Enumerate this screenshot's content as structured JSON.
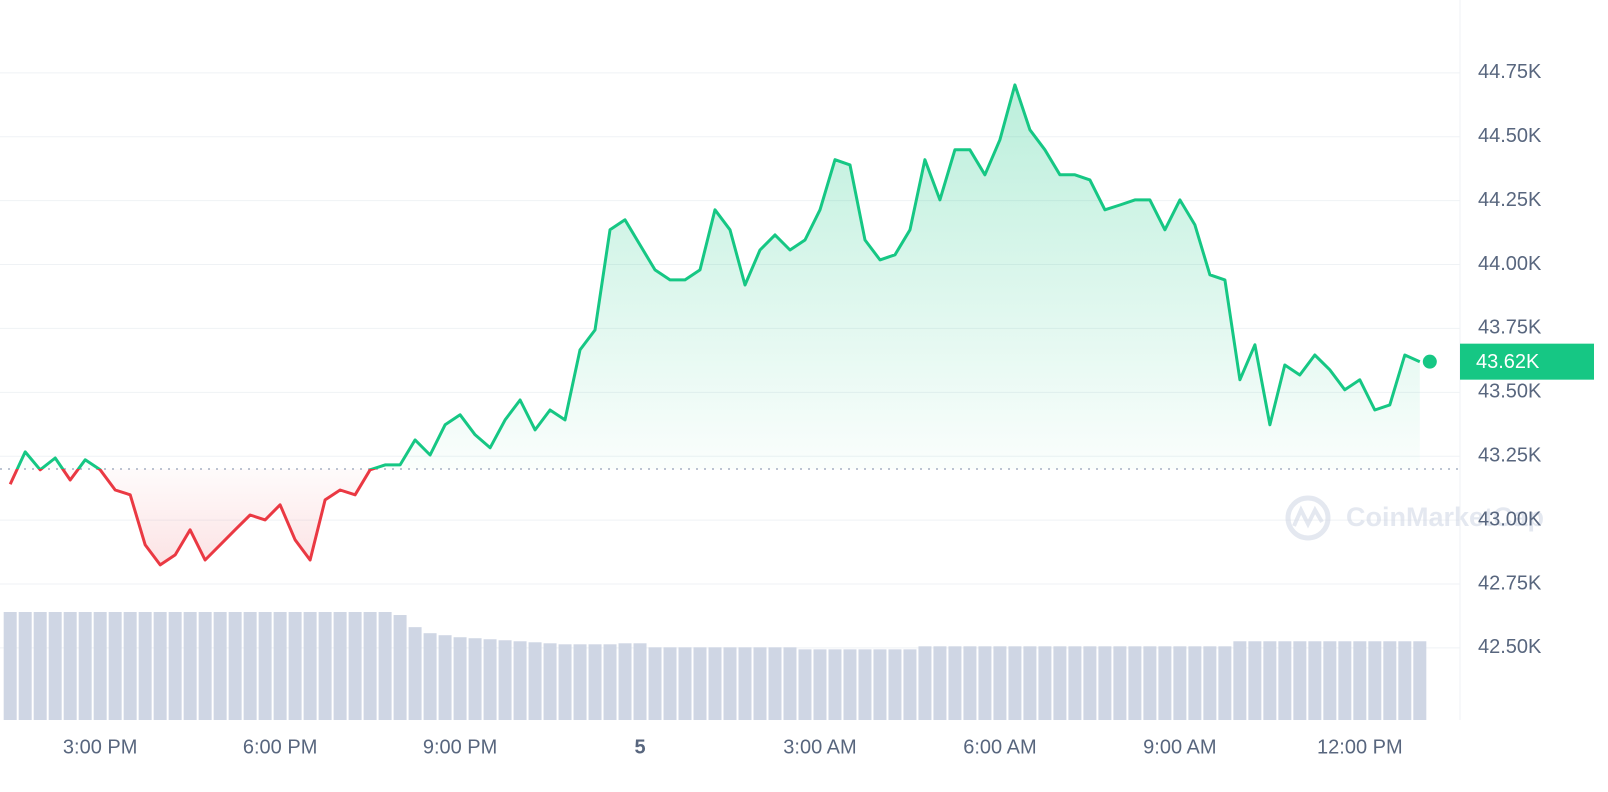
{
  "chart_data": {
    "type": "line",
    "x": [
      13.5,
      13.75,
      14,
      14.25,
      14.5,
      14.75,
      15,
      15.25,
      15.5,
      15.75,
      16,
      16.25,
      16.5,
      16.75,
      17,
      17.25,
      17.5,
      17.75,
      18,
      18.25,
      18.5,
      18.75,
      19,
      19.25,
      19.5,
      19.75,
      20,
      20.25,
      20.5,
      20.75,
      21,
      21.25,
      21.5,
      21.75,
      22,
      22.25,
      22.5,
      22.75,
      23,
      23.25,
      23.5,
      23.75,
      24,
      24.25,
      24.5,
      24.75,
      25,
      25.25,
      25.5,
      25.75,
      26,
      26.25,
      26.5,
      26.75,
      27,
      27.25,
      27.5,
      27.75,
      28,
      28.25,
      28.5,
      28.75,
      29,
      29.25,
      29.5,
      29.75,
      30,
      30.25,
      30.5,
      30.75,
      31,
      31.25,
      31.5,
      31.75,
      32,
      32.25,
      32.5,
      32.75,
      33,
      33.25,
      33.5,
      33.75,
      34,
      34.25,
      34.5,
      34.75,
      35,
      35.25,
      35.5,
      35.75,
      36,
      36.25,
      36.5,
      36.75,
      37
    ],
    "series": [
      {
        "name": "Price",
        "color": "#16c784",
        "color_below": "#ea3943",
        "values": [
          43140,
          43267,
          43197,
          43243,
          43157,
          43236,
          43197,
          43118,
          43099,
          42903,
          42825,
          42864,
          42962,
          42844,
          42903,
          42962,
          43020,
          43001,
          43060,
          42923,
          42844,
          43079,
          43118,
          43099,
          43197,
          43216,
          43216,
          43314,
          43255,
          43373,
          43412,
          43334,
          43283,
          43392,
          43470,
          43353,
          43431,
          43392,
          43666,
          43744,
          44136,
          44175,
          44077,
          43979,
          43940,
          43940,
          43979,
          44214,
          44136,
          43920,
          44057,
          44116,
          44057,
          44096,
          44214,
          44410,
          44390,
          44096,
          44018,
          44038,
          44136,
          44410,
          44253,
          44449,
          44449,
          44351,
          44488,
          44703,
          44527,
          44449,
          44351,
          44351,
          44331,
          44214,
          44233,
          44253,
          44253,
          44136,
          44253,
          44155,
          43960,
          43940,
          43549,
          43686,
          43373,
          43607,
          43568,
          43646,
          43588,
          43510,
          43549,
          43431,
          43451,
          43646,
          43620
        ]
      }
    ],
    "volume": {
      "color": "#cfd6e4",
      "values": [
        107,
        107,
        107,
        107,
        107,
        107,
        107,
        107,
        107,
        107,
        107,
        107,
        107,
        107,
        107,
        107,
        107,
        107,
        107,
        107,
        107,
        107,
        107,
        107,
        107,
        107,
        104,
        92,
        86,
        84,
        82,
        81,
        80,
        79,
        78,
        77,
        76,
        75,
        75,
        75,
        75,
        76,
        76,
        72,
        72,
        72,
        72,
        72,
        72,
        72,
        72,
        72,
        72,
        70,
        70,
        70,
        70,
        70,
        70,
        70,
        70,
        73,
        73,
        73,
        73,
        73,
        73,
        73,
        73,
        73,
        73,
        73,
        73,
        73,
        73,
        73,
        73,
        73,
        73,
        73,
        73,
        73,
        78,
        78,
        78,
        78,
        78,
        78,
        78,
        78,
        78,
        78,
        78,
        78,
        78
      ]
    },
    "baseline": 43200,
    "current_price": 43620,
    "current_price_label": "43.62K",
    "xlim": [
      13.33,
      37.67
    ],
    "ylim": [
      42218,
      45035
    ],
    "yticks": [
      {
        "value": 42500,
        "label": "42.50K"
      },
      {
        "value": 42750,
        "label": "42.75K"
      },
      {
        "value": 43000,
        "label": "43.00K"
      },
      {
        "value": 43250,
        "label": "43.25K"
      },
      {
        "value": 43500,
        "label": "43.50K"
      },
      {
        "value": 43750,
        "label": "43.75K"
      },
      {
        "value": 44000,
        "label": "44.00K"
      },
      {
        "value": 44250,
        "label": "44.25K"
      },
      {
        "value": 44500,
        "label": "44.50K"
      },
      {
        "value": 44750,
        "label": "44.75K"
      }
    ],
    "xticks": [
      {
        "value": 15,
        "label": "3:00 PM"
      },
      {
        "value": 18,
        "label": "6:00 PM"
      },
      {
        "value": 21,
        "label": "9:00 PM"
      },
      {
        "value": 24,
        "label": "5"
      },
      {
        "value": 27,
        "label": "3:00 AM"
      },
      {
        "value": 30,
        "label": "6:00 AM"
      },
      {
        "value": 33,
        "label": "9:00 AM"
      },
      {
        "value": 36,
        "label": "12:00 PM"
      }
    ],
    "grid": true,
    "watermark": "CoinMarketCap"
  }
}
